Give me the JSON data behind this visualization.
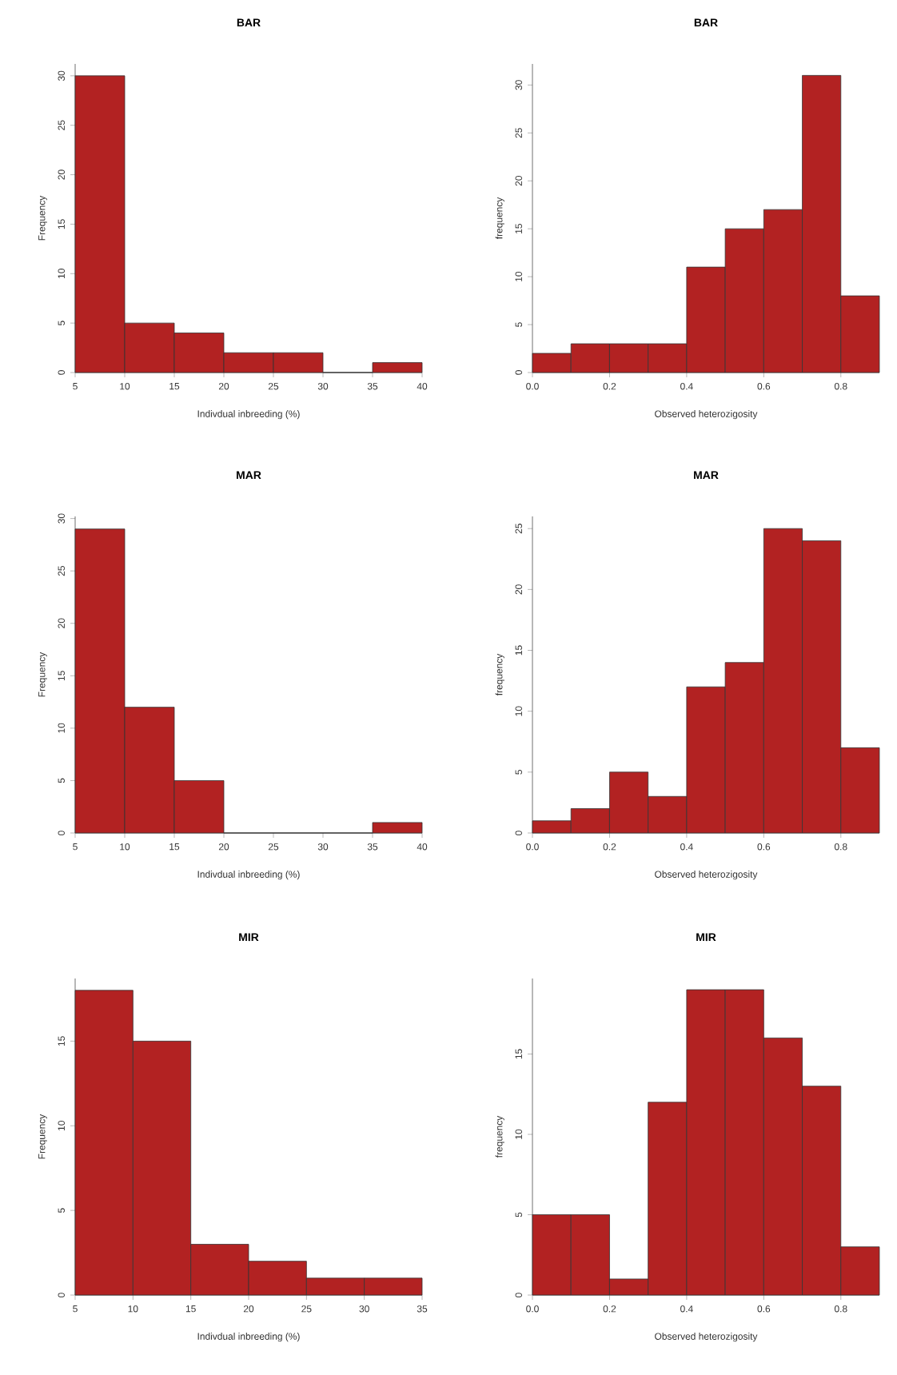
{
  "chart_data": [
    {
      "type": "histogram",
      "title": "BAR",
      "xlabel": "Indivdual inbreeding (%)",
      "ylabel": "Frequency",
      "color": "#b22222",
      "bins": [
        5,
        10,
        15,
        20,
        25,
        30,
        35,
        40
      ],
      "values": [
        30,
        5,
        4,
        2,
        2,
        0,
        1
      ],
      "xlim": [
        5,
        40
      ],
      "xticks": [
        5,
        10,
        15,
        20,
        25,
        30,
        35,
        40
      ],
      "ylim": [
        0,
        31.2
      ],
      "yticks": [
        0,
        5,
        10,
        15,
        20,
        25,
        30
      ]
    },
    {
      "type": "histogram",
      "title": "BAR",
      "xlabel": "Observed heterozigosity",
      "ylabel": "frequency",
      "color": "#b22222",
      "bins": [
        0,
        0.1,
        0.2,
        0.3,
        0.4,
        0.5,
        0.6,
        0.7,
        0.8,
        0.9
      ],
      "values": [
        2,
        3,
        3,
        3,
        11,
        15,
        17,
        31,
        8
      ],
      "xlim": [
        0,
        0.9
      ],
      "xticks": [
        {
          "value": 0,
          "label": "0.0"
        },
        {
          "value": 0.2,
          "label": "0.2"
        },
        {
          "value": 0.4,
          "label": "0.4"
        },
        {
          "value": 0.6,
          "label": "0.6"
        },
        {
          "value": 0.8,
          "label": "0.8"
        }
      ],
      "ylim": [
        0,
        32.2
      ],
      "yticks": [
        0,
        5,
        10,
        15,
        20,
        25,
        30
      ]
    },
    {
      "type": "histogram",
      "title": "MAR",
      "xlabel": "Indivdual inbreeding (%)",
      "ylabel": "Frequency",
      "color": "#b22222",
      "bins": [
        5,
        10,
        15,
        20,
        25,
        30,
        35,
        40
      ],
      "values": [
        29,
        12,
        5,
        0,
        0,
        0,
        1
      ],
      "xlim": [
        5,
        40
      ],
      "xticks": [
        5,
        10,
        15,
        20,
        25,
        30,
        35,
        40
      ],
      "ylim": [
        0,
        30.2
      ],
      "yticks": [
        0,
        5,
        10,
        15,
        20,
        25,
        30
      ]
    },
    {
      "type": "histogram",
      "title": "MAR",
      "xlabel": "Observed heterozigosity",
      "ylabel": "frequency",
      "color": "#b22222",
      "bins": [
        0,
        0.1,
        0.2,
        0.3,
        0.4,
        0.5,
        0.6,
        0.7,
        0.8,
        0.9
      ],
      "values": [
        1,
        2,
        5,
        3,
        12,
        14,
        25,
        24,
        7
      ],
      "xlim": [
        0,
        0.9
      ],
      "xticks": [
        {
          "value": 0,
          "label": "0.0"
        },
        {
          "value": 0.2,
          "label": "0.2"
        },
        {
          "value": 0.4,
          "label": "0.4"
        },
        {
          "value": 0.6,
          "label": "0.6"
        },
        {
          "value": 0.8,
          "label": "0.8"
        }
      ],
      "ylim": [
        0,
        26
      ],
      "yticks": [
        0,
        5,
        10,
        15,
        20,
        25
      ]
    },
    {
      "type": "histogram",
      "title": "MIR",
      "xlabel": "Indivdual inbreeding (%)",
      "ylabel": "Frequency",
      "color": "#b22222",
      "bins": [
        5,
        10,
        15,
        20,
        25,
        30,
        35
      ],
      "values": [
        18,
        15,
        3,
        2,
        1,
        1
      ],
      "xlim": [
        5,
        35
      ],
      "xticks": [
        5,
        10,
        15,
        20,
        25,
        30,
        35
      ],
      "ylim": [
        0,
        18.7
      ],
      "yticks": [
        0,
        5,
        10,
        15
      ]
    },
    {
      "type": "histogram",
      "title": "MIR",
      "xlabel": "Observed heterozigosity",
      "ylabel": "frequency",
      "color": "#b22222",
      "bins": [
        0,
        0.1,
        0.2,
        0.3,
        0.4,
        0.5,
        0.6,
        0.7,
        0.8,
        0.9
      ],
      "values": [
        5,
        5,
        1,
        12,
        19,
        19,
        16,
        13,
        3
      ],
      "xlim": [
        0,
        0.9
      ],
      "xticks": [
        {
          "value": 0,
          "label": "0.0"
        },
        {
          "value": 0.2,
          "label": "0.2"
        },
        {
          "value": 0.4,
          "label": "0.4"
        },
        {
          "value": 0.6,
          "label": "0.6"
        },
        {
          "value": 0.8,
          "label": "0.8"
        }
      ],
      "ylim": [
        0,
        19.7
      ],
      "yticks": [
        0,
        5,
        10,
        15
      ]
    }
  ]
}
